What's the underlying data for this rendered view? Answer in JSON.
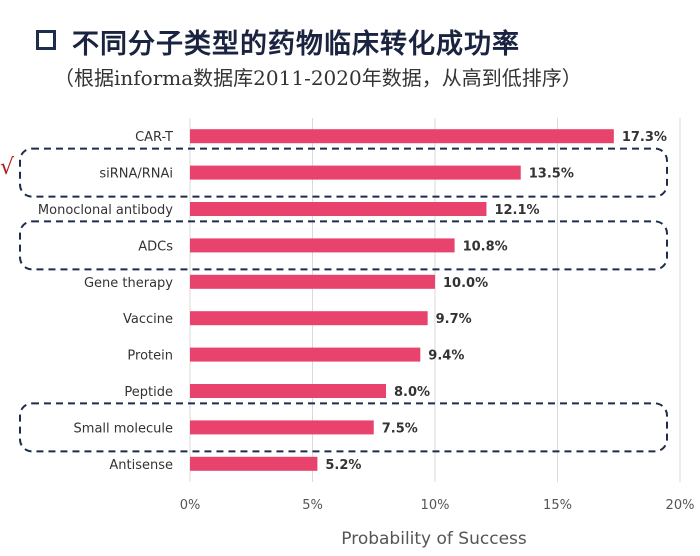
{
  "header": {
    "title": "不同分子类型的药物临床转化成功率",
    "subtitle": "（根据informa数据库2011-2020年数据，从高到低排序）",
    "check_mark": "√"
  },
  "chart_data": {
    "type": "bar",
    "orientation": "horizontal",
    "categories": [
      "CAR-T",
      "siRNA/RNAi",
      "Monoclonal antibody",
      "ADCs",
      "Gene therapy",
      "Vaccine",
      "Protein",
      "Peptide",
      "Small molecule",
      "Antisense"
    ],
    "values": [
      17.3,
      13.5,
      12.1,
      10.8,
      10.0,
      9.7,
      9.4,
      8.0,
      7.5,
      5.2
    ],
    "value_labels": [
      "17.3%",
      "13.5%",
      "12.1%",
      "10.8%",
      "10.0%",
      "9.7%",
      "9.4%",
      "8.0%",
      "7.5%",
      "5.2%"
    ],
    "xlabel": "Probability of Success",
    "xlim": [
      0,
      20
    ],
    "xticks": [
      0,
      5,
      10,
      15,
      20
    ],
    "xtick_labels": [
      "0%",
      "5%",
      "10%",
      "15%",
      "20%"
    ],
    "highlighted": [
      "siRNA/RNAi",
      "ADCs",
      "Small molecule"
    ],
    "bar_color": "#e8436d",
    "grid": true,
    "legend": "none"
  }
}
